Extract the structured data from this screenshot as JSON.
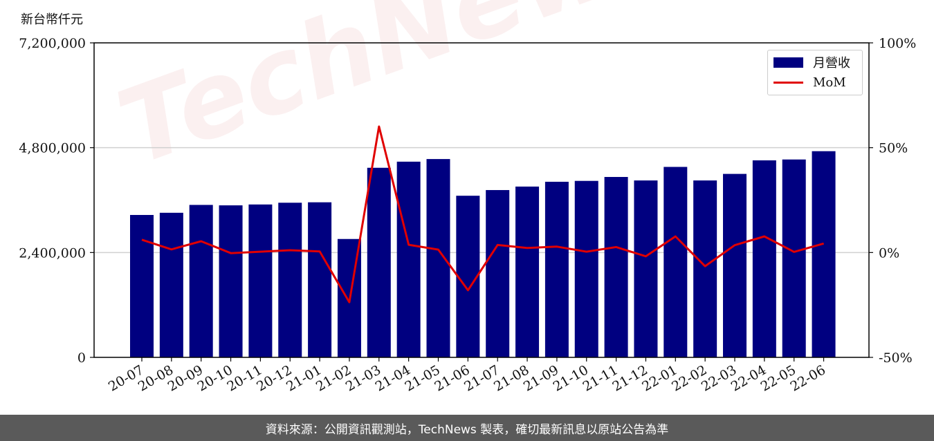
{
  "unit_label": "新台幣仟元",
  "footer_text": "資料來源：公開資訊觀測站，TechNews 製表，確切最新訊息以原站公告為準",
  "watermark_text": "TechNews",
  "chart_data": {
    "type": "bar",
    "categories": [
      "20-07",
      "20-08",
      "20-09",
      "20-10",
      "20-11",
      "20-12",
      "21-01",
      "21-02",
      "21-03",
      "21-04",
      "21-05",
      "21-06",
      "21-07",
      "21-08",
      "21-09",
      "21-10",
      "21-11",
      "21-12",
      "22-01",
      "22-02",
      "22-03",
      "22-04",
      "22-05",
      "22-06"
    ],
    "series": [
      {
        "name": "月營收",
        "type": "bar",
        "axis": "left",
        "color": "#000080",
        "values": [
          3260000,
          3310000,
          3490000,
          3480000,
          3500000,
          3540000,
          3550000,
          2710000,
          4340000,
          4480000,
          4540000,
          3700000,
          3830000,
          3910000,
          4020000,
          4040000,
          4130000,
          4050000,
          4360000,
          4050000,
          4200000,
          4510000,
          4530000,
          4720000
        ]
      },
      {
        "name": "MoM",
        "type": "line",
        "axis": "right",
        "color": "#e00000",
        "values": [
          6.1,
          1.5,
          5.4,
          -0.3,
          0.4,
          1.1,
          0.5,
          -23.7,
          60.1,
          3.7,
          1.4,
          -18.0,
          3.6,
          2.2,
          2.8,
          0.4,
          2.6,
          -1.8,
          7.7,
          -6.5,
          3.5,
          7.7,
          0.3,
          4.3
        ]
      }
    ],
    "y_left": {
      "lim": [
        0,
        7200000
      ],
      "ticks": [
        0,
        2400000,
        4800000,
        7200000
      ],
      "tick_labels": [
        "0",
        "2,400,000",
        "4,800,000",
        "7,200,000"
      ]
    },
    "y_right": {
      "lim": [
        -50,
        100
      ],
      "ticks": [
        -50,
        0,
        50,
        100
      ],
      "tick_labels": [
        "-50%",
        "0%",
        "50%",
        "100%"
      ]
    },
    "grid": "horizontal",
    "legend_position": "top-right"
  }
}
